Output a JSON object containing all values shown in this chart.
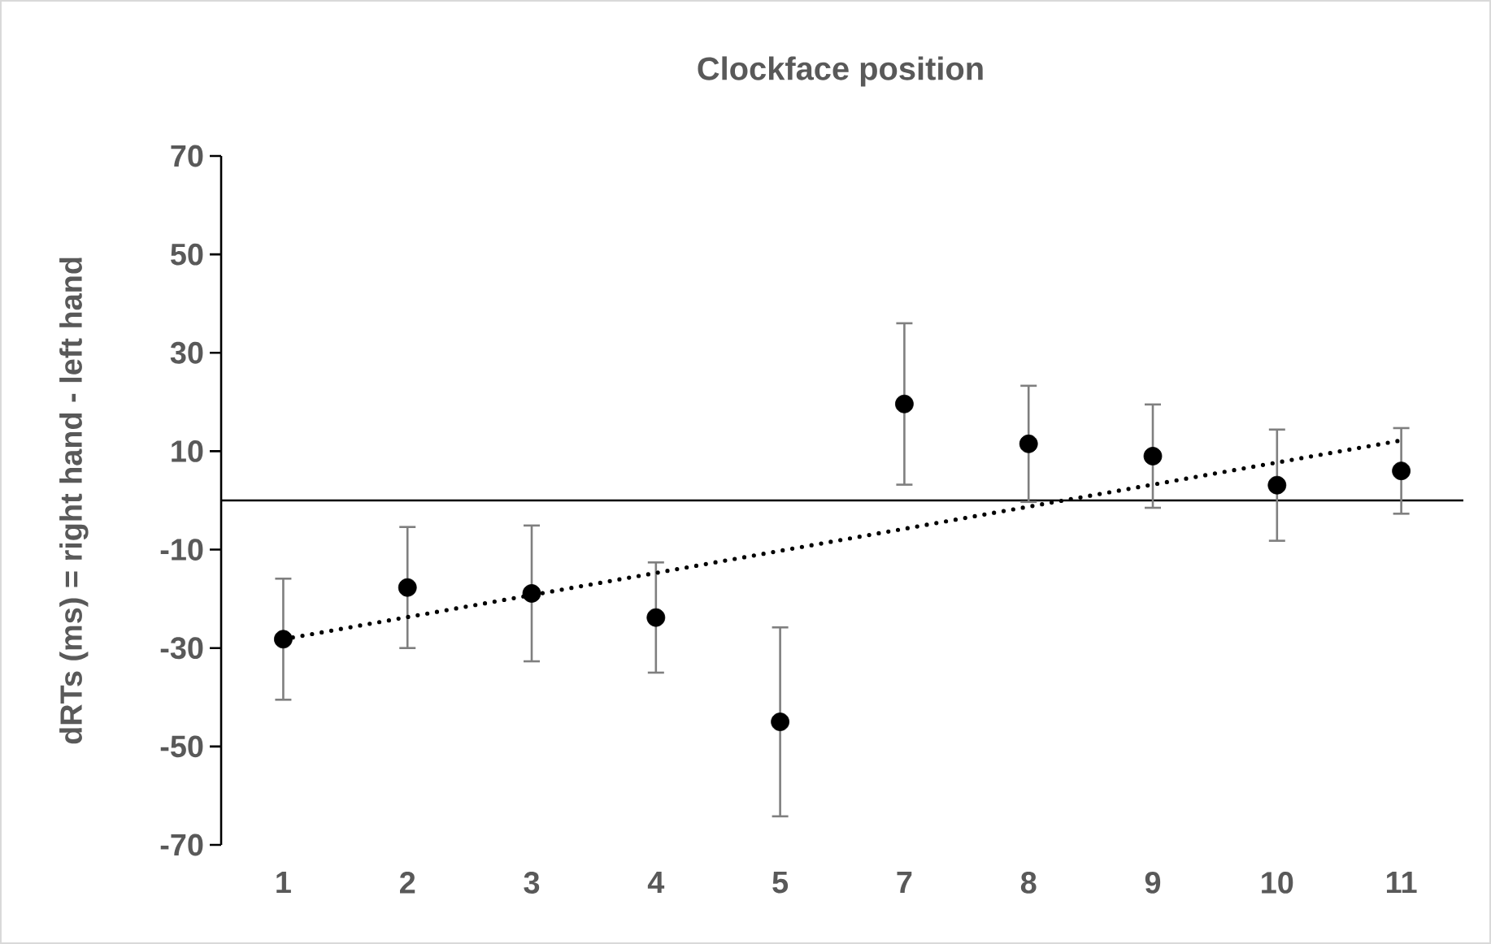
{
  "chart_data": {
    "type": "scatter",
    "title": "Clockface position",
    "ylabel": "dRTs (ms) = right hand - left hand",
    "categories": [
      "1",
      "2",
      "3",
      "4",
      "5",
      "7",
      "8",
      "9",
      "10",
      "11"
    ],
    "series": [
      {
        "color": "#000000",
        "marker": "circle",
        "values": [
          -28.2,
          -17.7,
          -18.9,
          -23.8,
          -45.0,
          19.6,
          11.5,
          9.0,
          3.1,
          6.0
        ],
        "errors": [
          12.3,
          12.3,
          13.8,
          11.2,
          19.2,
          16.4,
          11.8,
          10.5,
          11.3,
          8.7
        ]
      },
      {
        "type": "line",
        "color": "#000000",
        "line_style": "dotted",
        "marker": "none",
        "x": [
          "1",
          "11"
        ],
        "values": [
          -28.2,
          12.2
        ]
      }
    ],
    "ylim": [
      -70,
      70
    ],
    "yticks": [
      -70,
      -50,
      -30,
      -10,
      10,
      30,
      50,
      70
    ],
    "ref_lines": [
      {
        "axis": "y",
        "value": 0,
        "color": "#000000"
      }
    ],
    "grid": false
  }
}
